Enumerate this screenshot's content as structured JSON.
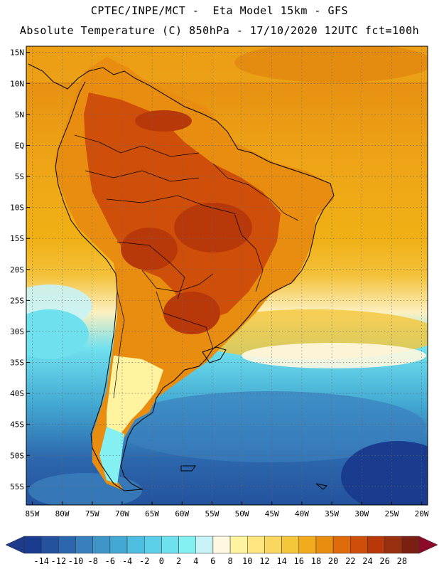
{
  "header": {
    "line1": "CPTEC/INPE/MCT -  Eta Model 15km - GFS",
    "line2": "Absolute Temperature (C) 850hPa - 17/10/2020 12UTC fct=100h"
  },
  "map": {
    "lat_labels": [
      "15N",
      "10N",
      "5N",
      "EQ",
      "5S",
      "10S",
      "15S",
      "20S",
      "25S",
      "30S",
      "35S",
      "40S",
      "45S",
      "50S",
      "55S"
    ],
    "lon_labels": [
      "85W",
      "80W",
      "75W",
      "70W",
      "65W",
      "60W",
      "55W",
      "50W",
      "45W",
      "40W",
      "35W",
      "30W",
      "25W",
      "20W"
    ],
    "extent": {
      "lon_min": -86,
      "lon_max": -19,
      "lat_min": -58,
      "lat_max": 16
    }
  },
  "colorbar": {
    "labels": [
      "-14",
      "-12",
      "-10",
      "-8",
      "-6",
      "-4",
      "-2",
      "0",
      "2",
      "4",
      "6",
      "8",
      "10",
      "12",
      "14",
      "16",
      "18",
      "20",
      "22",
      "24",
      "26",
      "28"
    ],
    "colors": [
      "#1a3c8f",
      "#24529e",
      "#2c67ad",
      "#3a7fbd",
      "#3f95c7",
      "#43a9d3",
      "#4dbde0",
      "#5ccfe8",
      "#6fe0ee",
      "#84f0f2",
      "#c8f3f6",
      "#fff8e1",
      "#fff3a0",
      "#fde680",
      "#f9d860",
      "#f5c53a",
      "#f0ac1c",
      "#e98d10",
      "#de6a0a",
      "#cf4f0a",
      "#b9380a",
      "#983010",
      "#7a1f12"
    ]
  }
}
